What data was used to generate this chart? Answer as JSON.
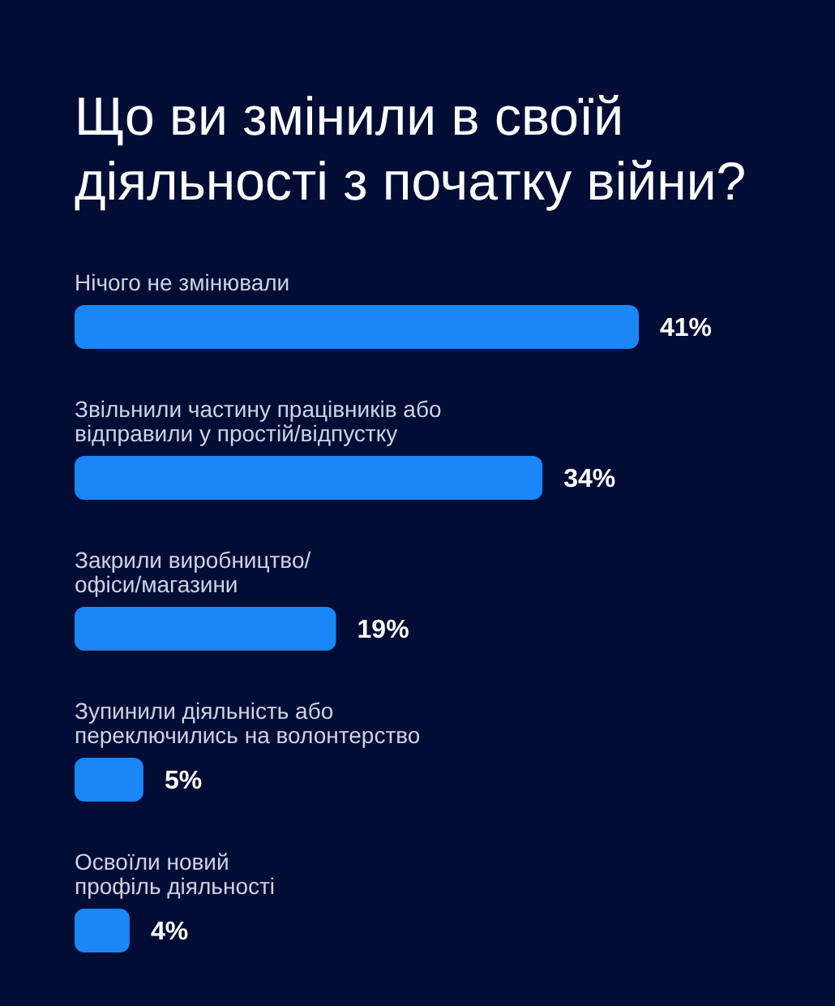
{
  "chart_data": {
    "type": "bar",
    "orientation": "horizontal",
    "title": "Що ви змінили в своїй діяльності з початку війни?",
    "categories": [
      "Нічого не змінювали",
      "Звільнили частину працівників або\nвідправили у простій/відпустку",
      "Закрили виробництво/\nофіси/магазини",
      "Зупинили діяльність або\nпереключились на волонтерство",
      "Освоїли новий\nпрофіль діяльності"
    ],
    "values": [
      41,
      34,
      19,
      5,
      4
    ],
    "color": "#1a86f7",
    "value_labels": [
      "41%",
      "34%",
      "19%",
      "5%",
      "4%"
    ]
  }
}
